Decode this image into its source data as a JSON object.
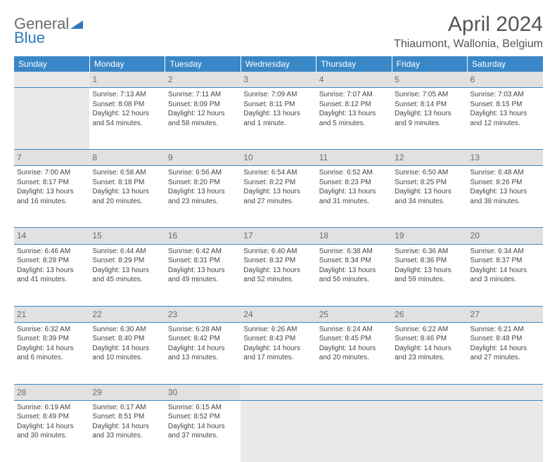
{
  "logo": {
    "word1": "General",
    "word2": "Blue"
  },
  "header": {
    "title": "April 2024",
    "location": "Thiaumont, Wallonia, Belgium"
  },
  "colors": {
    "header_bg": "#3a87c7",
    "header_text": "#ffffff",
    "daynum_bg": "#e1e1e1",
    "empty_bg": "#e9e9e9",
    "rule": "#3a87c7",
    "body_text": "#444444",
    "logo_gray": "#6a6a6a",
    "logo_blue": "#2f7abf"
  },
  "columns": [
    "Sunday",
    "Monday",
    "Tuesday",
    "Wednesday",
    "Thursday",
    "Friday",
    "Saturday"
  ],
  "weeks": [
    [
      null,
      {
        "n": "1",
        "sr": "7:13 AM",
        "ss": "8:08 PM",
        "dl": "12 hours and 54 minutes."
      },
      {
        "n": "2",
        "sr": "7:11 AM",
        "ss": "8:09 PM",
        "dl": "12 hours and 58 minutes."
      },
      {
        "n": "3",
        "sr": "7:09 AM",
        "ss": "8:11 PM",
        "dl": "13 hours and 1 minute."
      },
      {
        "n": "4",
        "sr": "7:07 AM",
        "ss": "8:12 PM",
        "dl": "13 hours and 5 minutes."
      },
      {
        "n": "5",
        "sr": "7:05 AM",
        "ss": "8:14 PM",
        "dl": "13 hours and 9 minutes."
      },
      {
        "n": "6",
        "sr": "7:03 AM",
        "ss": "8:15 PM",
        "dl": "13 hours and 12 minutes."
      }
    ],
    [
      {
        "n": "7",
        "sr": "7:00 AM",
        "ss": "8:17 PM",
        "dl": "13 hours and 16 minutes."
      },
      {
        "n": "8",
        "sr": "6:58 AM",
        "ss": "8:18 PM",
        "dl": "13 hours and 20 minutes."
      },
      {
        "n": "9",
        "sr": "6:56 AM",
        "ss": "8:20 PM",
        "dl": "13 hours and 23 minutes."
      },
      {
        "n": "10",
        "sr": "6:54 AM",
        "ss": "8:22 PM",
        "dl": "13 hours and 27 minutes."
      },
      {
        "n": "11",
        "sr": "6:52 AM",
        "ss": "8:23 PM",
        "dl": "13 hours and 31 minutes."
      },
      {
        "n": "12",
        "sr": "6:50 AM",
        "ss": "8:25 PM",
        "dl": "13 hours and 34 minutes."
      },
      {
        "n": "13",
        "sr": "6:48 AM",
        "ss": "8:26 PM",
        "dl": "13 hours and 38 minutes."
      }
    ],
    [
      {
        "n": "14",
        "sr": "6:46 AM",
        "ss": "8:28 PM",
        "dl": "13 hours and 41 minutes."
      },
      {
        "n": "15",
        "sr": "6:44 AM",
        "ss": "8:29 PM",
        "dl": "13 hours and 45 minutes."
      },
      {
        "n": "16",
        "sr": "6:42 AM",
        "ss": "8:31 PM",
        "dl": "13 hours and 49 minutes."
      },
      {
        "n": "17",
        "sr": "6:40 AM",
        "ss": "8:32 PM",
        "dl": "13 hours and 52 minutes."
      },
      {
        "n": "18",
        "sr": "6:38 AM",
        "ss": "8:34 PM",
        "dl": "13 hours and 56 minutes."
      },
      {
        "n": "19",
        "sr": "6:36 AM",
        "ss": "8:36 PM",
        "dl": "13 hours and 59 minutes."
      },
      {
        "n": "20",
        "sr": "6:34 AM",
        "ss": "8:37 PM",
        "dl": "14 hours and 3 minutes."
      }
    ],
    [
      {
        "n": "21",
        "sr": "6:32 AM",
        "ss": "8:39 PM",
        "dl": "14 hours and 6 minutes."
      },
      {
        "n": "22",
        "sr": "6:30 AM",
        "ss": "8:40 PM",
        "dl": "14 hours and 10 minutes."
      },
      {
        "n": "23",
        "sr": "6:28 AM",
        "ss": "8:42 PM",
        "dl": "14 hours and 13 minutes."
      },
      {
        "n": "24",
        "sr": "6:26 AM",
        "ss": "8:43 PM",
        "dl": "14 hours and 17 minutes."
      },
      {
        "n": "25",
        "sr": "6:24 AM",
        "ss": "8:45 PM",
        "dl": "14 hours and 20 minutes."
      },
      {
        "n": "26",
        "sr": "6:22 AM",
        "ss": "8:46 PM",
        "dl": "14 hours and 23 minutes."
      },
      {
        "n": "27",
        "sr": "6:21 AM",
        "ss": "8:48 PM",
        "dl": "14 hours and 27 minutes."
      }
    ],
    [
      {
        "n": "28",
        "sr": "6:19 AM",
        "ss": "8:49 PM",
        "dl": "14 hours and 30 minutes."
      },
      {
        "n": "29",
        "sr": "6:17 AM",
        "ss": "8:51 PM",
        "dl": "14 hours and 33 minutes."
      },
      {
        "n": "30",
        "sr": "6:15 AM",
        "ss": "8:52 PM",
        "dl": "14 hours and 37 minutes."
      },
      null,
      null,
      null,
      null
    ]
  ],
  "labels": {
    "sunrise": "Sunrise:",
    "sunset": "Sunset:",
    "daylight": "Daylight:"
  }
}
